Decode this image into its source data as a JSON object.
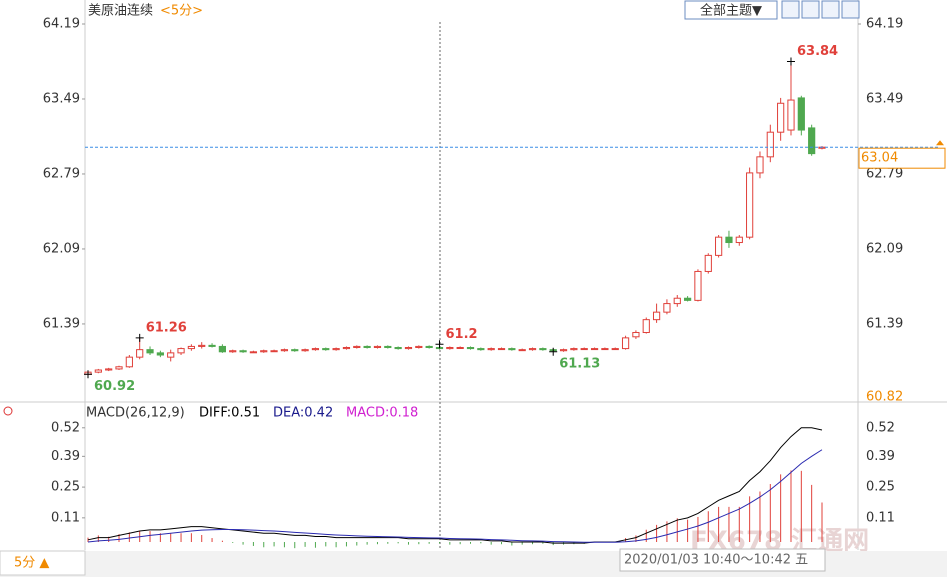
{
  "chart_data": {
    "type": "candlestick",
    "title": "美原油连续",
    "period": "<5分>",
    "theme_button": "全部主题▼",
    "ylim": [
      60.82,
      64.19
    ],
    "yticks": [
      64.19,
      63.49,
      62.79,
      62.09,
      61.39
    ],
    "last_price": 63.04,
    "extremes": [
      63.84,
      61.26,
      61.2,
      60.92,
      61.13
    ],
    "candles": {
      "open": [
        60.92,
        60.94,
        60.96,
        60.97,
        60.99,
        61.08,
        61.15,
        61.12,
        61.08,
        61.12,
        61.16,
        61.18,
        61.19,
        61.18,
        61.13,
        61.14,
        61.13,
        61.13,
        61.14,
        61.14,
        61.15,
        61.14,
        61.15,
        61.16,
        61.15,
        61.16,
        61.17,
        61.18,
        61.17,
        61.18,
        61.17,
        61.16,
        61.17,
        61.18,
        61.17,
        61.16,
        61.17,
        61.17,
        61.16,
        61.15,
        61.16,
        61.16,
        61.15,
        61.15,
        61.16,
        61.15,
        61.14,
        61.15,
        61.16,
        61.16,
        61.16,
        61.16,
        61.16,
        61.27,
        61.31,
        61.43,
        61.5,
        61.58,
        61.63,
        61.61,
        61.88,
        62.03,
        62.2,
        62.15,
        62.2,
        62.8,
        62.95,
        63.18,
        63.2,
        63.5,
        63.22,
        63.03
      ],
      "high": [
        60.95,
        60.97,
        60.98,
        61.0,
        61.1,
        61.26,
        61.18,
        61.14,
        61.15,
        61.17,
        61.2,
        61.22,
        61.21,
        61.2,
        61.15,
        61.15,
        61.14,
        61.15,
        61.15,
        61.16,
        61.16,
        61.16,
        61.17,
        61.17,
        61.17,
        61.18,
        61.19,
        61.19,
        61.19,
        61.19,
        61.18,
        61.18,
        61.19,
        61.19,
        61.2,
        61.18,
        61.18,
        61.18,
        61.17,
        61.17,
        61.17,
        61.17,
        61.16,
        61.17,
        61.17,
        61.16,
        61.16,
        61.17,
        61.17,
        61.17,
        61.17,
        61.17,
        61.28,
        61.33,
        61.45,
        61.58,
        61.62,
        61.66,
        61.65,
        61.9,
        62.05,
        62.22,
        62.26,
        62.22,
        62.85,
        63.0,
        63.25,
        63.5,
        63.84,
        63.52,
        63.25,
        63.05
      ],
      "low": [
        60.92,
        60.93,
        60.95,
        60.96,
        60.98,
        61.06,
        61.1,
        61.08,
        61.04,
        61.1,
        61.14,
        61.16,
        61.17,
        61.12,
        61.12,
        61.12,
        61.12,
        61.12,
        61.13,
        61.13,
        61.13,
        61.13,
        61.14,
        61.14,
        61.14,
        61.15,
        61.16,
        61.16,
        61.16,
        61.16,
        61.15,
        61.15,
        61.16,
        61.16,
        61.15,
        61.15,
        61.16,
        61.15,
        61.14,
        61.14,
        61.15,
        61.14,
        61.14,
        61.14,
        61.14,
        61.13,
        61.13,
        61.14,
        61.15,
        61.15,
        61.15,
        61.15,
        61.15,
        61.25,
        61.3,
        61.4,
        61.48,
        61.55,
        61.6,
        61.6,
        61.86,
        62.01,
        62.1,
        62.12,
        62.18,
        62.75,
        62.9,
        63.1,
        63.15,
        63.15,
        62.96,
        63.02
      ],
      "close": [
        60.94,
        60.96,
        60.97,
        60.99,
        61.08,
        61.15,
        61.12,
        61.1,
        61.12,
        61.16,
        61.18,
        61.19,
        61.18,
        61.13,
        61.14,
        61.13,
        61.13,
        61.14,
        61.14,
        61.15,
        61.14,
        61.15,
        61.16,
        61.15,
        61.16,
        61.17,
        61.18,
        61.17,
        61.18,
        61.17,
        61.16,
        61.17,
        61.18,
        61.17,
        61.16,
        61.17,
        61.17,
        61.16,
        61.15,
        61.16,
        61.16,
        61.15,
        61.15,
        61.16,
        61.15,
        61.14,
        61.15,
        61.16,
        61.16,
        61.16,
        61.16,
        61.16,
        61.26,
        61.31,
        61.43,
        61.5,
        61.58,
        61.63,
        61.61,
        61.88,
        62.03,
        62.2,
        62.15,
        62.2,
        62.8,
        62.95,
        63.18,
        63.45,
        63.48,
        63.2,
        62.98,
        63.04
      ]
    },
    "macd": {
      "label": "MACD(26,12,9)",
      "diff_label": "DIFF:0.51",
      "dea_label": "DEA:0.42",
      "macd_label": "MACD:0.18",
      "ylim": [
        -0.03,
        0.56
      ],
      "yticks": [
        0.52,
        0.39,
        0.25,
        0.11
      ],
      "diff": [
        0.01,
        0.02,
        0.02,
        0.03,
        0.04,
        0.05,
        0.055,
        0.055,
        0.06,
        0.065,
        0.07,
        0.07,
        0.065,
        0.06,
        0.055,
        0.05,
        0.045,
        0.04,
        0.04,
        0.035,
        0.03,
        0.03,
        0.025,
        0.025,
        0.02,
        0.02,
        0.02,
        0.02,
        0.02,
        0.02,
        0.02,
        0.015,
        0.015,
        0.015,
        0.015,
        0.01,
        0.01,
        0.01,
        0.01,
        0.005,
        0.005,
        0.0,
        0.0,
        0.0,
        0.0,
        -0.005,
        -0.005,
        -0.005,
        -0.005,
        0.0,
        0.0,
        0.0,
        0.01,
        0.02,
        0.04,
        0.06,
        0.08,
        0.1,
        0.11,
        0.13,
        0.16,
        0.19,
        0.21,
        0.23,
        0.28,
        0.32,
        0.37,
        0.43,
        0.48,
        0.52,
        0.52,
        0.51
      ],
      "dea": [
        0.0,
        0.005,
        0.008,
        0.012,
        0.018,
        0.024,
        0.03,
        0.035,
        0.04,
        0.045,
        0.05,
        0.054,
        0.056,
        0.057,
        0.057,
        0.056,
        0.054,
        0.052,
        0.05,
        0.047,
        0.044,
        0.041,
        0.038,
        0.035,
        0.032,
        0.03,
        0.028,
        0.026,
        0.025,
        0.024,
        0.023,
        0.021,
        0.02,
        0.019,
        0.018,
        0.016,
        0.015,
        0.014,
        0.013,
        0.011,
        0.01,
        0.008,
        0.006,
        0.005,
        0.004,
        0.002,
        0.001,
        0.0,
        -0.001,
        -0.001,
        -0.001,
        -0.001,
        0.001,
        0.005,
        0.012,
        0.021,
        0.033,
        0.046,
        0.059,
        0.073,
        0.09,
        0.11,
        0.13,
        0.15,
        0.176,
        0.205,
        0.238,
        0.276,
        0.317,
        0.358,
        0.39,
        0.42
      ],
      "hist": [
        0.02,
        0.03,
        0.024,
        0.036,
        0.044,
        0.052,
        0.05,
        0.04,
        0.04,
        0.04,
        0.04,
        0.032,
        0.018,
        0.006,
        -0.004,
        -0.012,
        -0.018,
        -0.024,
        -0.02,
        -0.024,
        -0.028,
        -0.022,
        -0.026,
        -0.02,
        -0.024,
        -0.02,
        -0.016,
        -0.012,
        -0.01,
        -0.008,
        -0.006,
        -0.012,
        -0.01,
        -0.008,
        -0.006,
        -0.012,
        -0.01,
        -0.008,
        -0.006,
        -0.012,
        -0.01,
        -0.016,
        -0.012,
        -0.01,
        -0.008,
        -0.014,
        -0.012,
        -0.01,
        -0.008,
        0.002,
        0.002,
        0.002,
        0.018,
        0.03,
        0.056,
        0.078,
        0.094,
        0.108,
        0.102,
        0.114,
        0.14,
        0.16,
        0.16,
        0.16,
        0.208,
        0.23,
        0.264,
        0.308,
        0.326,
        0.324,
        0.26,
        0.18
      ]
    },
    "period_button": "5分 ▲",
    "tooltip": "2020/01/03 10:40～10:42 五",
    "watermark": "FX678 汇通网"
  }
}
